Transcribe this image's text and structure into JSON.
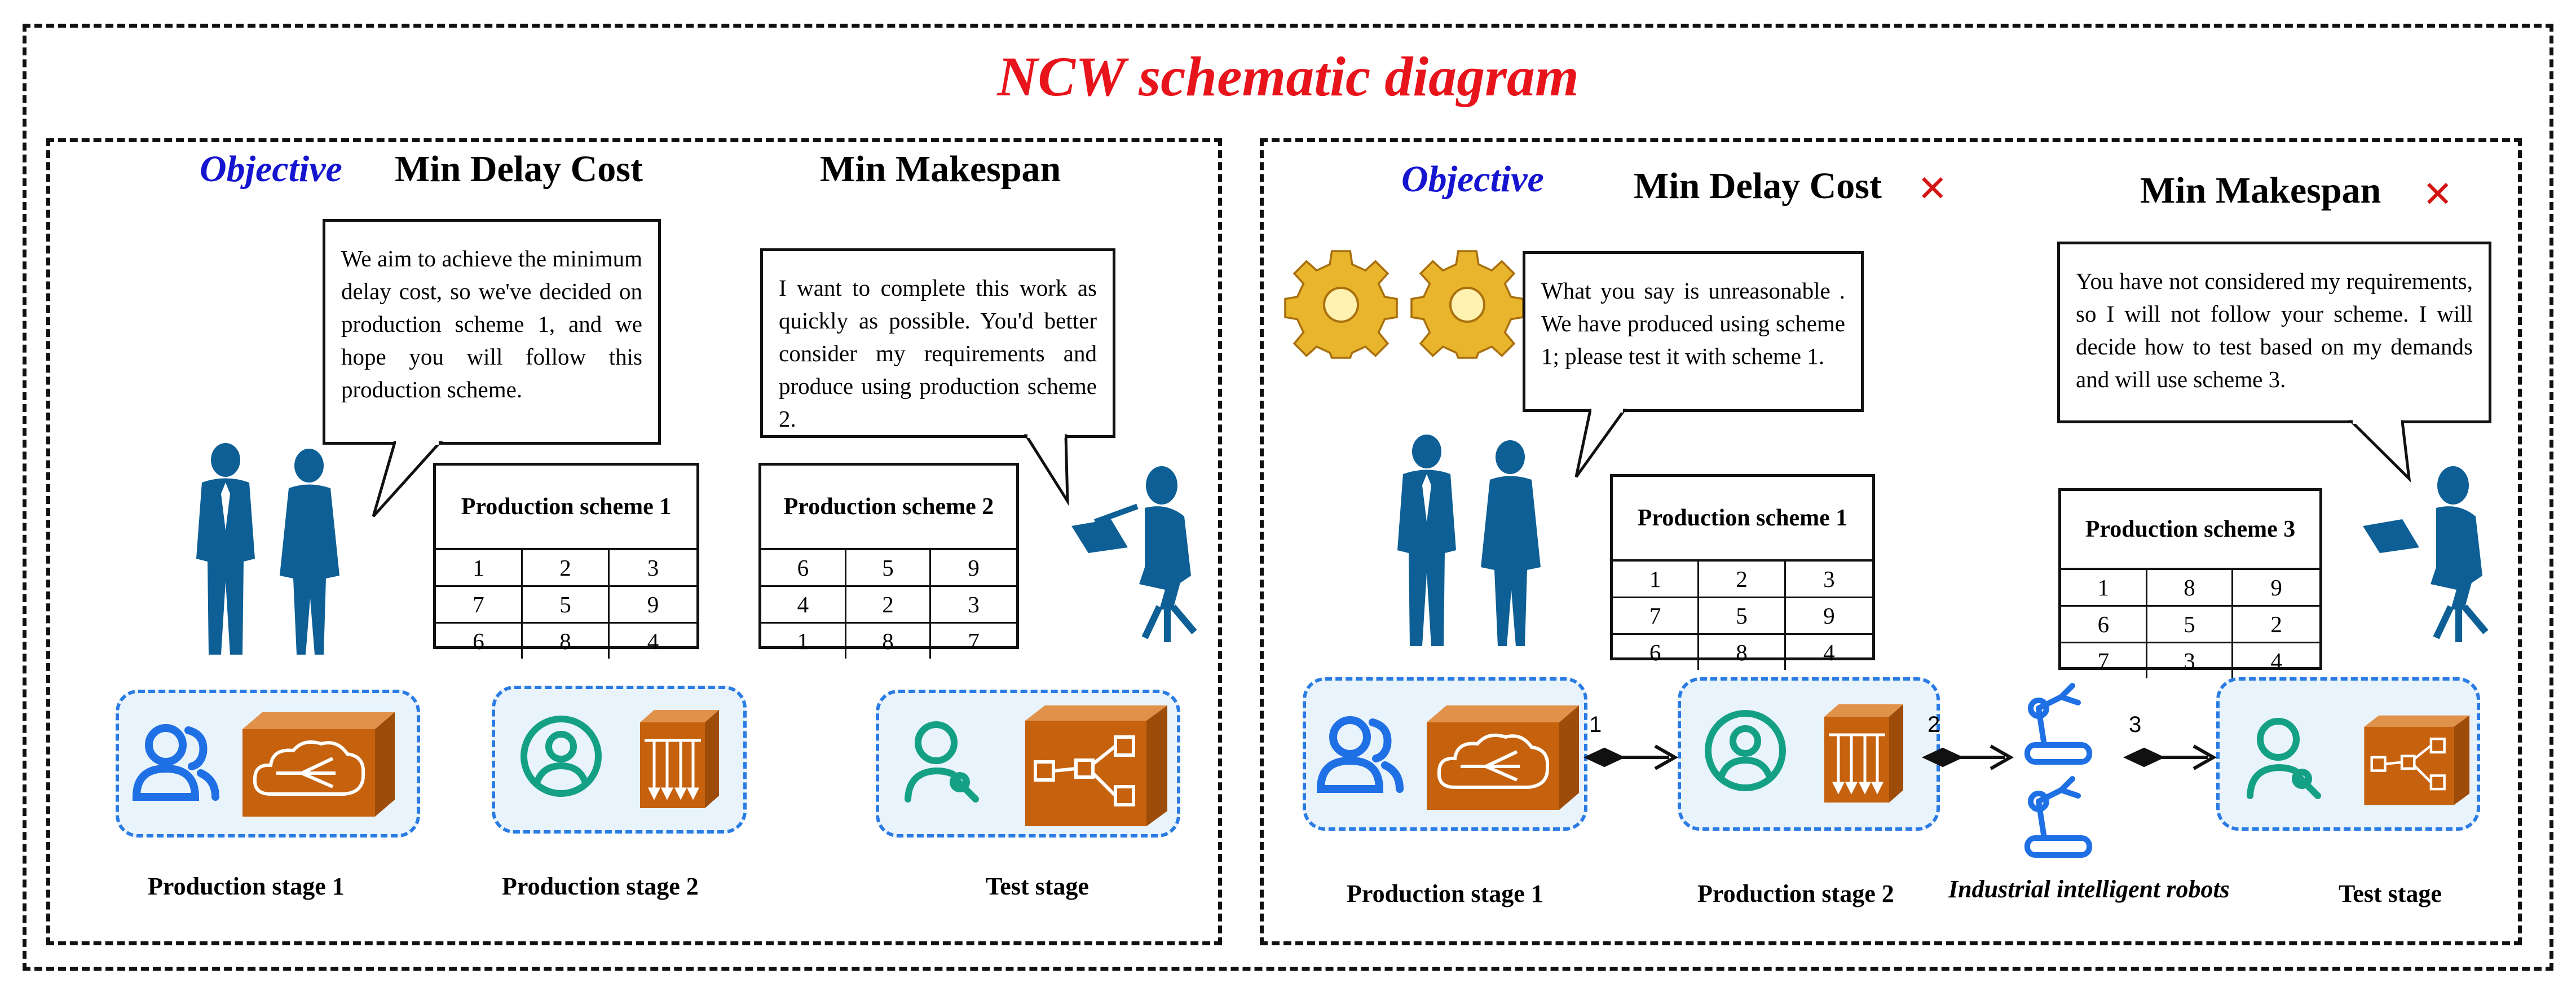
{
  "title": "NCW schematic diagram",
  "left_panel": {
    "objective_label": "Objective",
    "goal_1": "Min Delay Cost",
    "goal_2": "Min Makespan",
    "bubble_1": "We aim to achieve the minimum delay cost, so we've decided on production scheme 1, and we hope you will follow this production scheme.",
    "bubble_2": "I want to complete this work as quickly as possible. You'd better consider my requirements and produce using production scheme 2.",
    "scheme_1": {
      "title": "Production scheme 1",
      "rows": [
        [
          "1",
          "2",
          "3"
        ],
        [
          "7",
          "5",
          "9"
        ],
        [
          "6",
          "8",
          "4"
        ]
      ]
    },
    "scheme_2": {
      "title": "Production scheme 2",
      "rows": [
        [
          "6",
          "5",
          "9"
        ],
        [
          "4",
          "2",
          "3"
        ],
        [
          "1",
          "8",
          "7"
        ]
      ]
    },
    "stages": [
      "Production stage 1",
      "Production stage 2",
      "Test stage"
    ]
  },
  "right_panel": {
    "objective_label": "Objective",
    "goal_1": "Min Delay Cost",
    "goal_2": "Min Makespan",
    "bubble_1": "What you say is unreasonable . We have produced using scheme 1; please test it with scheme 1.",
    "bubble_2": "You have not considered my requirements, so I will not follow your scheme. I will decide how to test based on my demands and will use scheme 3.",
    "scheme_1": {
      "title": "Production scheme 1",
      "rows": [
        [
          "1",
          "2",
          "3"
        ],
        [
          "7",
          "5",
          "9"
        ],
        [
          "6",
          "8",
          "4"
        ]
      ]
    },
    "scheme_3": {
      "title": "Production scheme 3",
      "rows": [
        [
          "1",
          "8",
          "9"
        ],
        [
          "6",
          "5",
          "2"
        ],
        [
          "7",
          "3",
          "4"
        ]
      ]
    },
    "stages": [
      "Production stage 1",
      "Production stage 2",
      "Industrial intelligent robots",
      "Test stage"
    ],
    "arrow_numbers": [
      "1",
      "2",
      "3"
    ]
  },
  "colors": {
    "title": "#e8141b",
    "objective": "#1515d0",
    "cross": "#d41414",
    "person": "#0e5f96",
    "machine": "#c6620e",
    "stage_border": "#2a7be4",
    "stage_fill": "#e8f3fb"
  },
  "icons": [
    "users-icon",
    "user-circle-icon",
    "user-wrench-icon",
    "cloud-machine-icon",
    "parallel-machine-icon",
    "distribution-machine-icon",
    "gear-icon",
    "robot-arm-icon",
    "businesspeople-icon",
    "laptop-person-icon",
    "cross-icon"
  ]
}
